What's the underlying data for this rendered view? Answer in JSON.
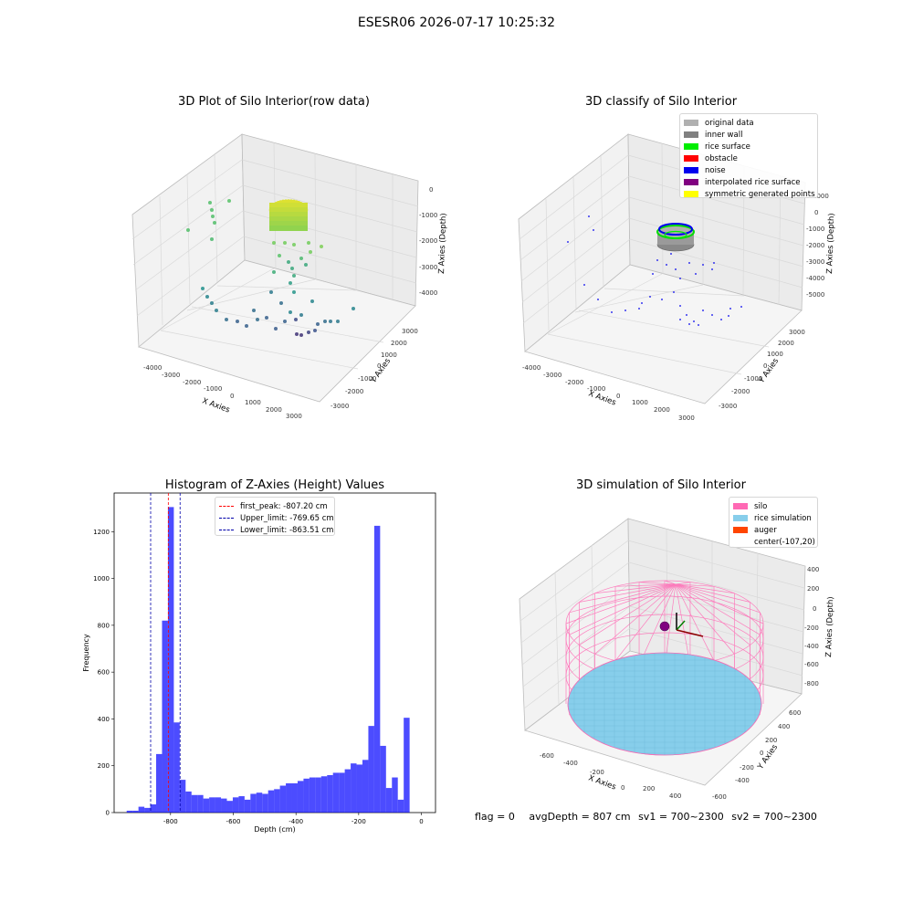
{
  "suptitle": "ESESR06 2026-07-17 10:25:32",
  "panels": {
    "raw": {
      "title": "3D Plot of Silo Interior(row data)",
      "xlabel": "X Axies",
      "ylabel": "Y Axies",
      "zlabel": "Z Axies (Depth)",
      "xticks": [
        "-4000",
        "-3000",
        "-2000",
        "-1000",
        "0",
        "1000",
        "2000",
        "3000"
      ],
      "yticks": [
        "-3000",
        "-2000",
        "-1000",
        "0",
        "1000",
        "2000",
        "3000"
      ],
      "zticks": [
        "0",
        "-1000",
        "-2000",
        "-3000",
        "-4000"
      ]
    },
    "classify": {
      "title": "3D classify of Silo Interior",
      "xlabel": "X Axies",
      "ylabel": "Y Axies",
      "zlabel": "Z Axies (Depth)",
      "xticks": [
        "-4000",
        "-3000",
        "-2000",
        "-1000",
        "0",
        "1000",
        "2000",
        "3000"
      ],
      "yticks": [
        "-3000",
        "-2000",
        "-1000",
        "0",
        "1000",
        "2000",
        "3000"
      ],
      "zticks": [
        "1000",
        "0",
        "-1000",
        "-2000",
        "-3000",
        "-4000",
        "-5000"
      ],
      "legend": [
        {
          "label": "original data",
          "color": "#b0b0b0"
        },
        {
          "label": "inner wall",
          "color": "#808080"
        },
        {
          "label": "rice surface",
          "color": "#00ee00"
        },
        {
          "label": "obstacle",
          "color": "#ff0000"
        },
        {
          "label": "noise",
          "color": "#0000ee"
        },
        {
          "label": "interpolated rice surface",
          "color": "#800080"
        },
        {
          "label": "symmetric generated points",
          "color": "#ffff00"
        }
      ]
    },
    "simulation": {
      "title": "3D simulation of Silo Interior",
      "xlabel": "X Axies",
      "ylabel": "Y Axies",
      "zlabel": "Z Axies (Depth)",
      "xticks": [
        "-600",
        "-400",
        "-200",
        "0",
        "200",
        "400"
      ],
      "yticks": [
        "-600",
        "-400",
        "-200",
        "0",
        "200",
        "400",
        "600"
      ],
      "zticks": [
        "400",
        "200",
        "0",
        "-200",
        "-400",
        "-600",
        "-800"
      ],
      "legend": [
        {
          "label": "silo",
          "color": "#ff69b4"
        },
        {
          "label": "rice simulation",
          "color": "#87ceeb"
        },
        {
          "label": "auger",
          "color": "#ff4500"
        },
        {
          "label": "center(-107,20)",
          "color": ""
        }
      ]
    }
  },
  "chart_data": [
    {
      "type": "histogram",
      "title": "Histogram of Z-Axies (Height) Values",
      "xlabel": "Depth (cm)",
      "ylabel": "Frequency",
      "xlim": [
        -980,
        45
      ],
      "ylim": [
        0,
        1365
      ],
      "xticks": [
        -800,
        -600,
        -400,
        -200,
        0
      ],
      "yticks": [
        0,
        200,
        400,
        600,
        800,
        1000,
        1200
      ],
      "bin_start": -940,
      "bin_width": 18.8,
      "counts": [
        8,
        8,
        25,
        20,
        35,
        250,
        820,
        1305,
        385,
        140,
        90,
        75,
        75,
        60,
        65,
        65,
        60,
        50,
        65,
        70,
        55,
        80,
        85,
        80,
        95,
        100,
        115,
        125,
        125,
        135,
        145,
        150,
        150,
        155,
        160,
        170,
        170,
        185,
        210,
        205,
        225,
        370,
        1225,
        285,
        105,
        150,
        55,
        405
      ],
      "bar_color": "#0000ff",
      "reference_lines": [
        {
          "label": "first_peak: -807.20 cm",
          "value": -807.2,
          "color": "#ff0000"
        },
        {
          "label": "Upper_limit: -769.65 cm",
          "value": -769.65,
          "color": "#0000aa"
        },
        {
          "label": "Lower_limit: -863.51 cm",
          "value": -863.51,
          "color": "#0000aa"
        }
      ],
      "legend_position": "upper-center"
    }
  ],
  "status": {
    "flag": "flag = 0",
    "avg_depth": "avgDepth = 807 cm",
    "sv1": "sv1 = 700~2300",
    "sv2": "sv2 = 700~2300"
  }
}
